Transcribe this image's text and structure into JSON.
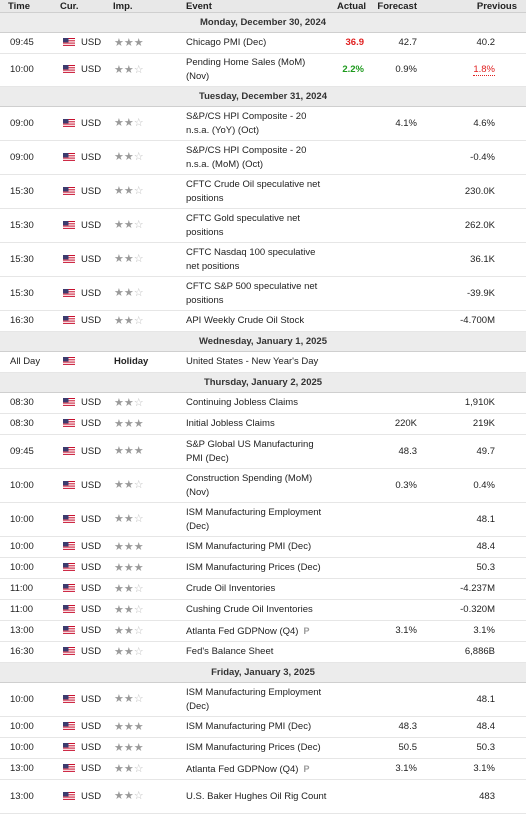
{
  "columns": {
    "time": "Time",
    "cur": "Cur.",
    "imp": "Imp.",
    "event": "Event",
    "actual": "Actual",
    "forecast": "Forecast",
    "previous": "Previous"
  },
  "colors": {
    "negative": "#e01f1f",
    "positive": "#1e9a1e"
  },
  "days": [
    {
      "label": "Monday, December 30, 2024",
      "rows": [
        {
          "time": "09:45",
          "cur": "USD",
          "imp": 3,
          "event": "Chicago PMI (Dec)",
          "actual": "36.9",
          "actual_color": "red",
          "forecast": "42.7",
          "previous": "40.2"
        },
        {
          "time": "10:00",
          "cur": "USD",
          "imp": 2,
          "event": "Pending Home Sales (MoM) (Nov)",
          "actual": "2.2%",
          "actual_color": "green",
          "forecast": "0.9%",
          "previous": "1.8%",
          "previous_style": "revised"
        }
      ]
    },
    {
      "label": "Tuesday, December 31, 2024",
      "rows": [
        {
          "time": "09:00",
          "cur": "USD",
          "imp": 2,
          "event": "S&P/CS HPI Composite - 20 n.s.a. (YoY) (Oct)",
          "actual": "",
          "forecast": "4.1%",
          "previous": "4.6%"
        },
        {
          "time": "09:00",
          "cur": "USD",
          "imp": 2,
          "event": "S&P/CS HPI Composite - 20 n.s.a. (MoM) (Oct)",
          "actual": "",
          "forecast": "",
          "previous": "-0.4%"
        },
        {
          "time": "15:30",
          "cur": "USD",
          "imp": 2,
          "event": "CFTC Crude Oil speculative net positions",
          "actual": "",
          "forecast": "",
          "previous": "230.0K"
        },
        {
          "time": "15:30",
          "cur": "USD",
          "imp": 2,
          "event": "CFTC Gold speculative net positions",
          "actual": "",
          "forecast": "",
          "previous": "262.0K"
        },
        {
          "time": "15:30",
          "cur": "USD",
          "imp": 2,
          "event": "CFTC Nasdaq 100 speculative net positions",
          "actual": "",
          "forecast": "",
          "previous": "36.1K"
        },
        {
          "time": "15:30",
          "cur": "USD",
          "imp": 2,
          "event": "CFTC S&P 500 speculative net positions",
          "actual": "",
          "forecast": "",
          "previous": "-39.9K"
        },
        {
          "time": "16:30",
          "cur": "USD",
          "imp": 2,
          "event": "API Weekly Crude Oil Stock",
          "actual": "",
          "forecast": "",
          "previous": "-4.700M"
        }
      ]
    },
    {
      "label": "Wednesday, January 1, 2025",
      "rows": [
        {
          "time": "All Day",
          "cur": "",
          "imp": 0,
          "imp_text": "Holiday",
          "event": "United States - New Year's Day",
          "actual": "",
          "forecast": "",
          "previous": ""
        }
      ]
    },
    {
      "label": "Thursday, January 2, 2025",
      "rows": [
        {
          "time": "08:30",
          "cur": "USD",
          "imp": 2,
          "event": "Continuing Jobless Claims",
          "actual": "",
          "forecast": "",
          "previous": "1,910K"
        },
        {
          "time": "08:30",
          "cur": "USD",
          "imp": 3,
          "event": "Initial Jobless Claims",
          "actual": "",
          "forecast": "220K",
          "previous": "219K"
        },
        {
          "time": "09:45",
          "cur": "USD",
          "imp": 3,
          "event": "S&P Global US Manufacturing PMI (Dec)",
          "actual": "",
          "forecast": "48.3",
          "previous": "49.7"
        },
        {
          "time": "10:00",
          "cur": "USD",
          "imp": 2,
          "event": "Construction Spending (MoM) (Nov)",
          "actual": "",
          "forecast": "0.3%",
          "previous": "0.4%"
        },
        {
          "time": "10:00",
          "cur": "USD",
          "imp": 2,
          "event": "ISM Manufacturing Employment (Dec)",
          "actual": "",
          "forecast": "",
          "previous": "48.1"
        },
        {
          "time": "10:00",
          "cur": "USD",
          "imp": 3,
          "event": "ISM Manufacturing PMI (Dec)",
          "actual": "",
          "forecast": "",
          "previous": "48.4"
        },
        {
          "time": "10:00",
          "cur": "USD",
          "imp": 3,
          "event": "ISM Manufacturing Prices (Dec)",
          "actual": "",
          "forecast": "",
          "previous": "50.3"
        },
        {
          "time": "11:00",
          "cur": "USD",
          "imp": 2,
          "event": "Crude Oil Inventories",
          "actual": "",
          "forecast": "",
          "previous": "-4.237M"
        },
        {
          "time": "11:00",
          "cur": "USD",
          "imp": 2,
          "event": "Cushing Crude Oil Inventories",
          "actual": "",
          "forecast": "",
          "previous": "-0.320M"
        },
        {
          "time": "13:00",
          "cur": "USD",
          "imp": 2,
          "event": "Atlanta Fed GDPNow (Q4)",
          "prelim": "P",
          "actual": "",
          "forecast": "3.1%",
          "previous": "3.1%"
        },
        {
          "time": "16:30",
          "cur": "USD",
          "imp": 2,
          "event": "Fed's Balance Sheet",
          "actual": "",
          "forecast": "",
          "previous": "6,886B"
        }
      ]
    },
    {
      "label": "Friday, January 3, 2025",
      "rows": [
        {
          "time": "10:00",
          "cur": "USD",
          "imp": 2,
          "event": "ISM Manufacturing Employment (Dec)",
          "actual": "",
          "forecast": "",
          "previous": "48.1"
        },
        {
          "time": "10:00",
          "cur": "USD",
          "imp": 3,
          "event": "ISM Manufacturing PMI (Dec)",
          "actual": "",
          "forecast": "48.3",
          "previous": "48.4"
        },
        {
          "time": "10:00",
          "cur": "USD",
          "imp": 3,
          "event": "ISM Manufacturing Prices (Dec)",
          "actual": "",
          "forecast": "50.5",
          "previous": "50.3"
        },
        {
          "time": "13:00",
          "cur": "USD",
          "imp": 2,
          "event": "Atlanta Fed GDPNow (Q4)",
          "prelim": "P",
          "actual": "",
          "forecast": "3.1%",
          "previous": "3.1%"
        },
        {
          "time": "13:00",
          "cur": "USD",
          "imp": 2,
          "event": "U.S. Baker Hughes Oil Rig Count",
          "actual": "",
          "forecast": "",
          "previous": "483"
        }
      ]
    }
  ]
}
